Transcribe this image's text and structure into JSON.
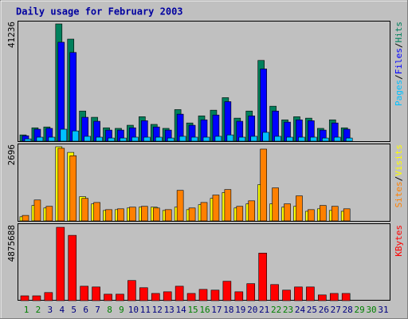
{
  "title": "Daily usage for February 2003",
  "legend_separator": "/",
  "chart_data": [
    {
      "type": "bar",
      "series": [
        {
          "name": "Hits",
          "color": "#00805c",
          "values": [
            2200,
            4700,
            5000,
            41236,
            35900,
            10600,
            8400,
            4700,
            4500,
            5600,
            8600,
            5900,
            4500,
            11100,
            6400,
            8900,
            10900,
            15300,
            8100,
            10600,
            28400,
            12300,
            7500,
            8600,
            8100,
            4500,
            7500,
            4700,
            0,
            0,
            0
          ]
        },
        {
          "name": "Files",
          "color": "#0000ff",
          "values": [
            1900,
            4200,
            4500,
            34800,
            31200,
            8400,
            7000,
            3900,
            3900,
            4700,
            7200,
            5000,
            3900,
            9500,
            5600,
            7500,
            9200,
            13900,
            7000,
            8900,
            25400,
            10600,
            6700,
            7500,
            7200,
            3900,
            6400,
            4200,
            0,
            0,
            0
          ]
        },
        {
          "name": "Pages",
          "color": "#00c0ff",
          "values": [
            800,
            1400,
            1400,
            4200,
            3600,
            1700,
            1400,
            1100,
            1100,
            1400,
            1400,
            1400,
            1100,
            1700,
            1400,
            1400,
            1700,
            2200,
            1400,
            1700,
            3100,
            1700,
            1400,
            1400,
            1400,
            1100,
            1400,
            1100,
            0,
            0,
            0
          ]
        }
      ],
      "ylim": [
        0,
        41236
      ],
      "yticks": [
        41236
      ]
    },
    {
      "type": "bar",
      "series": [
        {
          "name": "Visits",
          "color": "#ffff00",
          "values": [
            150,
            560,
            470,
            2696,
            2490,
            880,
            620,
            380,
            410,
            470,
            500,
            500,
            380,
            500,
            410,
            590,
            820,
            1030,
            470,
            620,
            1320,
            620,
            500,
            530,
            350,
            440,
            380,
            350,
            0,
            0,
            0
          ]
        },
        {
          "name": "Sites",
          "color": "#ff8000",
          "values": [
            200,
            760,
            530,
            2640,
            2370,
            820,
            670,
            410,
            440,
            500,
            530,
            470,
            410,
            1110,
            470,
            670,
            940,
            1140,
            530,
            730,
            2610,
            1200,
            620,
            910,
            410,
            560,
            530,
            440,
            0,
            0,
            0
          ]
        }
      ],
      "ylim": [
        0,
        2696
      ],
      "yticks": [
        2696
      ]
    },
    {
      "type": "bar",
      "series": [
        {
          "name": "KBytes",
          "color": "#ff0000",
          "values": [
            320000,
            320000,
            540000,
            4875688,
            4340000,
            960000,
            910000,
            430000,
            430000,
            1340000,
            860000,
            480000,
            590000,
            960000,
            480000,
            750000,
            700000,
            1290000,
            590000,
            1130000,
            3160000,
            1070000,
            700000,
            910000,
            910000,
            380000,
            480000,
            480000,
            0,
            0,
            0
          ]
        }
      ],
      "ylim": [
        0,
        4875688
      ],
      "yticks": [
        4875688
      ],
      "categories": [
        "1",
        "2",
        "3",
        "4",
        "5",
        "6",
        "7",
        "8",
        "9",
        "10",
        "11",
        "12",
        "13",
        "14",
        "15",
        "16",
        "17",
        "18",
        "19",
        "20",
        "21",
        "22",
        "23",
        "24",
        "25",
        "26",
        "27",
        "28",
        "29",
        "30",
        "31"
      ],
      "category_colors": [
        "#008000",
        "#008000",
        "#000080",
        "#000080",
        "#000080",
        "#000080",
        "#000080",
        "#008000",
        "#008000",
        "#000080",
        "#000080",
        "#000080",
        "#000080",
        "#000080",
        "#008000",
        "#008000",
        "#000080",
        "#000080",
        "#000080",
        "#000080",
        "#000080",
        "#008000",
        "#008000",
        "#000080",
        "#000080",
        "#000080",
        "#000080",
        "#000080",
        "#008000",
        "#008000",
        "#000080"
      ]
    }
  ]
}
